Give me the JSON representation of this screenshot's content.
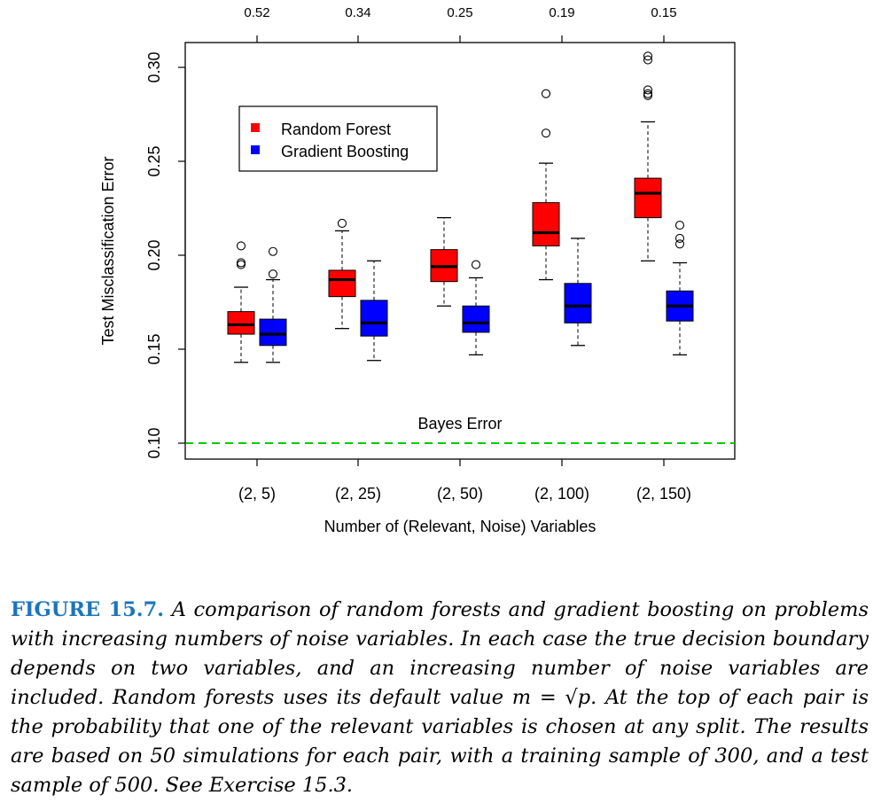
{
  "chart_data": {
    "type": "box",
    "xlabel": "Number of (Relevant, Noise) Variables",
    "ylabel": "Test Misclassification Error",
    "ylim": [
      0.095,
      0.32
    ],
    "yticks": [
      "0.10",
      "0.15",
      "0.20",
      "0.25",
      "0.30"
    ],
    "ytick_values": [
      0.1,
      0.15,
      0.2,
      0.25,
      0.3
    ],
    "categories": [
      "(2, 5)",
      "(2, 25)",
      "(2, 50)",
      "(2, 100)",
      "(2, 150)"
    ],
    "top_axis_labels": [
      "0.52",
      "0.34",
      "0.25",
      "0.19",
      "0.15"
    ],
    "legend": {
      "position": "top-left",
      "entries": [
        {
          "label": "Random Forest",
          "color": "#ff0000"
        },
        {
          "label": "Gradient Boosting",
          "color": "#0000ff"
        }
      ]
    },
    "reference_line": {
      "label": "Bayes Error",
      "value": 0.1,
      "color": "#00cc00",
      "style": "dashed"
    },
    "series": [
      {
        "name": "Random Forest",
        "color": "#ff0000",
        "boxes": [
          {
            "whisker_low": 0.143,
            "q1": 0.158,
            "median": 0.163,
            "q3": 0.17,
            "whisker_high": 0.183,
            "outliers": [
              0.195,
              0.196,
              0.205
            ]
          },
          {
            "whisker_low": 0.161,
            "q1": 0.178,
            "median": 0.187,
            "q3": 0.192,
            "whisker_high": 0.213,
            "outliers": [
              0.217
            ]
          },
          {
            "whisker_low": 0.173,
            "q1": 0.186,
            "median": 0.194,
            "q3": 0.203,
            "whisker_high": 0.22,
            "outliers": []
          },
          {
            "whisker_low": 0.187,
            "q1": 0.205,
            "median": 0.212,
            "q3": 0.228,
            "whisker_high": 0.249,
            "outliers": [
              0.265,
              0.286
            ]
          },
          {
            "whisker_low": 0.197,
            "q1": 0.22,
            "median": 0.233,
            "q3": 0.241,
            "whisker_high": 0.271,
            "outliers": [
              0.285,
              0.286,
              0.288,
              0.304,
              0.306
            ]
          }
        ]
      },
      {
        "name": "Gradient Boosting",
        "color": "#0000ff",
        "boxes": [
          {
            "whisker_low": 0.143,
            "q1": 0.152,
            "median": 0.158,
            "q3": 0.166,
            "whisker_high": 0.187,
            "outliers": [
              0.19,
              0.202
            ]
          },
          {
            "whisker_low": 0.144,
            "q1": 0.157,
            "median": 0.164,
            "q3": 0.176,
            "whisker_high": 0.197,
            "outliers": []
          },
          {
            "whisker_low": 0.147,
            "q1": 0.159,
            "median": 0.164,
            "q3": 0.173,
            "whisker_high": 0.188,
            "outliers": [
              0.195
            ]
          },
          {
            "whisker_low": 0.152,
            "q1": 0.164,
            "median": 0.173,
            "q3": 0.185,
            "whisker_high": 0.209,
            "outliers": []
          },
          {
            "whisker_low": 0.147,
            "q1": 0.165,
            "median": 0.173,
            "q3": 0.181,
            "whisker_high": 0.196,
            "outliers": [
              0.206,
              0.209,
              0.216
            ]
          }
        ]
      }
    ]
  },
  "caption": {
    "label": "FIGURE 15.7.",
    "text_before_formula": "A comparison of random forests and gradient boosting on problems with increasing numbers of noise variables. In each case the true decision boundary depends on two variables, and an increasing number of noise variables are included. Random forests uses its default value",
    "formula": "m = √p",
    "text_after_formula": ". At the top of each pair is the probability that one of the relevant variables is chosen at any split. The results are based on 50 simulations for each pair, with a training sample of 300, and a test sample of 500. See Exercise 15.3."
  }
}
